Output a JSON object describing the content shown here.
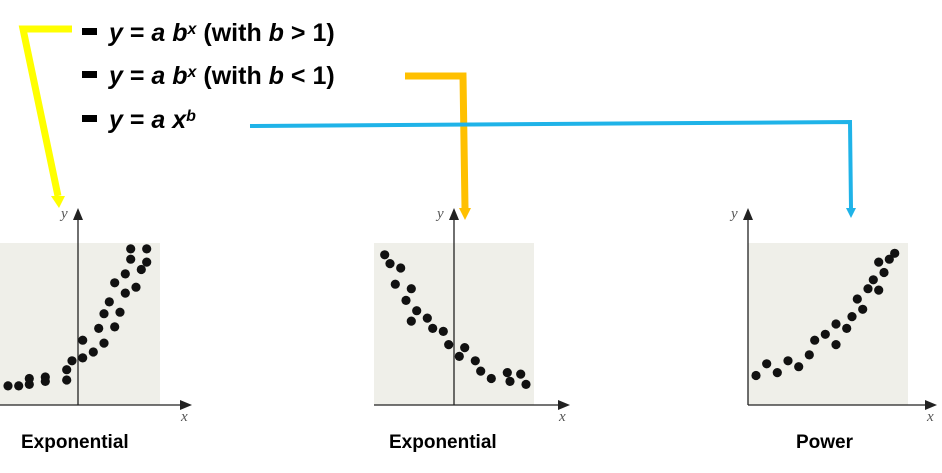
{
  "legend": [
    {
      "var": "y",
      "eq": " = ",
      "a": "a",
      "base": "b",
      "exp": "x",
      "cond_open": " (with ",
      "cond_var": "b",
      "cond_rest": " > 1)",
      "connector_color": "#ffff00"
    },
    {
      "var": "y",
      "eq": " = ",
      "a": "a",
      "base": "b",
      "exp": "x",
      "cond_open": " (with ",
      "cond_var": "b",
      "cond_rest": " < 1)",
      "connector_color": "#ffc000"
    },
    {
      "var": "y",
      "eq": " = ",
      "a": "a",
      "base": "x",
      "exp": "b",
      "cond_open": "",
      "cond_var": "",
      "cond_rest": "",
      "connector_color": "#1fb3e8"
    }
  ],
  "plots": [
    {
      "caption": "Exponential",
      "x_axis_label": "x",
      "y_axis_label": "y",
      "panel_color": "#efefe9",
      "trend": "exponential growth"
    },
    {
      "caption": "Exponential",
      "x_axis_label": "x",
      "y_axis_label": "y",
      "panel_color": "#efefe9",
      "trend": "exponential decay"
    },
    {
      "caption": "Power",
      "x_axis_label": "x",
      "y_axis_label": "y",
      "panel_color": "#efefe9",
      "trend": "power growth"
    }
  ],
  "chart_data": [
    {
      "type": "scatter",
      "title": "Exponential",
      "xlabel": "x",
      "ylabel": "y",
      "xlim": [
        -3,
        3
      ],
      "ylim": [
        -1,
        10
      ],
      "points": [
        [
          -2.7,
          0.3
        ],
        [
          -2.3,
          0.3
        ],
        [
          -1.9,
          0.4
        ],
        [
          -1.9,
          0.8
        ],
        [
          -1.3,
          0.9
        ],
        [
          -1.3,
          0.6
        ],
        [
          -0.5,
          1.4
        ],
        [
          -0.5,
          0.7
        ],
        [
          -0.3,
          2.0
        ],
        [
          0.1,
          2.2
        ],
        [
          0.5,
          2.6
        ],
        [
          0.1,
          3.4
        ],
        [
          0.9,
          3.2
        ],
        [
          0.7,
          4.2
        ],
        [
          1.3,
          4.3
        ],
        [
          0.9,
          5.2
        ],
        [
          1.5,
          5.3
        ],
        [
          1.1,
          6.0
        ],
        [
          1.7,
          6.6
        ],
        [
          1.3,
          7.3
        ],
        [
          2.1,
          7.0
        ],
        [
          1.7,
          7.9
        ],
        [
          2.3,
          8.2
        ],
        [
          1.9,
          8.9
        ],
        [
          2.5,
          8.7
        ],
        [
          1.9,
          9.6
        ],
        [
          2.5,
          9.6
        ]
      ]
    },
    {
      "type": "scatter",
      "title": "Exponential",
      "xlabel": "x",
      "ylabel": "y",
      "xlim": [
        -3,
        3
      ],
      "ylim": [
        -1,
        10
      ],
      "points": [
        [
          -2.6,
          9.2
        ],
        [
          -2.4,
          8.6
        ],
        [
          -2.0,
          8.3
        ],
        [
          -2.2,
          7.2
        ],
        [
          -1.6,
          6.9
        ],
        [
          -1.8,
          6.1
        ],
        [
          -1.4,
          5.4
        ],
        [
          -1.0,
          4.9
        ],
        [
          -1.6,
          4.7
        ],
        [
          -0.8,
          4.2
        ],
        [
          -0.4,
          4.0
        ],
        [
          -0.2,
          3.1
        ],
        [
          0.4,
          2.9
        ],
        [
          0.2,
          2.3
        ],
        [
          0.8,
          2.0
        ],
        [
          1.0,
          1.3
        ],
        [
          1.4,
          0.8
        ],
        [
          2.0,
          1.2
        ],
        [
          2.5,
          1.1
        ],
        [
          2.1,
          0.6
        ],
        [
          2.7,
          0.4
        ]
      ]
    },
    {
      "type": "scatter",
      "title": "Power",
      "xlabel": "x",
      "ylabel": "y",
      "xlim": [
        0,
        6
      ],
      "ylim": [
        -1,
        10
      ],
      "points": [
        [
          0.3,
          1.0
        ],
        [
          0.7,
          1.8
        ],
        [
          1.1,
          1.2
        ],
        [
          1.5,
          2.0
        ],
        [
          1.9,
          1.6
        ],
        [
          2.3,
          2.4
        ],
        [
          2.5,
          3.4
        ],
        [
          2.9,
          3.8
        ],
        [
          3.3,
          3.1
        ],
        [
          3.3,
          4.5
        ],
        [
          3.7,
          4.2
        ],
        [
          3.9,
          5.0
        ],
        [
          4.1,
          6.2
        ],
        [
          4.3,
          5.5
        ],
        [
          4.5,
          6.9
        ],
        [
          4.9,
          6.8
        ],
        [
          4.7,
          7.5
        ],
        [
          5.1,
          8.0
        ],
        [
          4.9,
          8.7
        ],
        [
          5.3,
          8.9
        ],
        [
          5.5,
          9.3
        ]
      ]
    }
  ]
}
